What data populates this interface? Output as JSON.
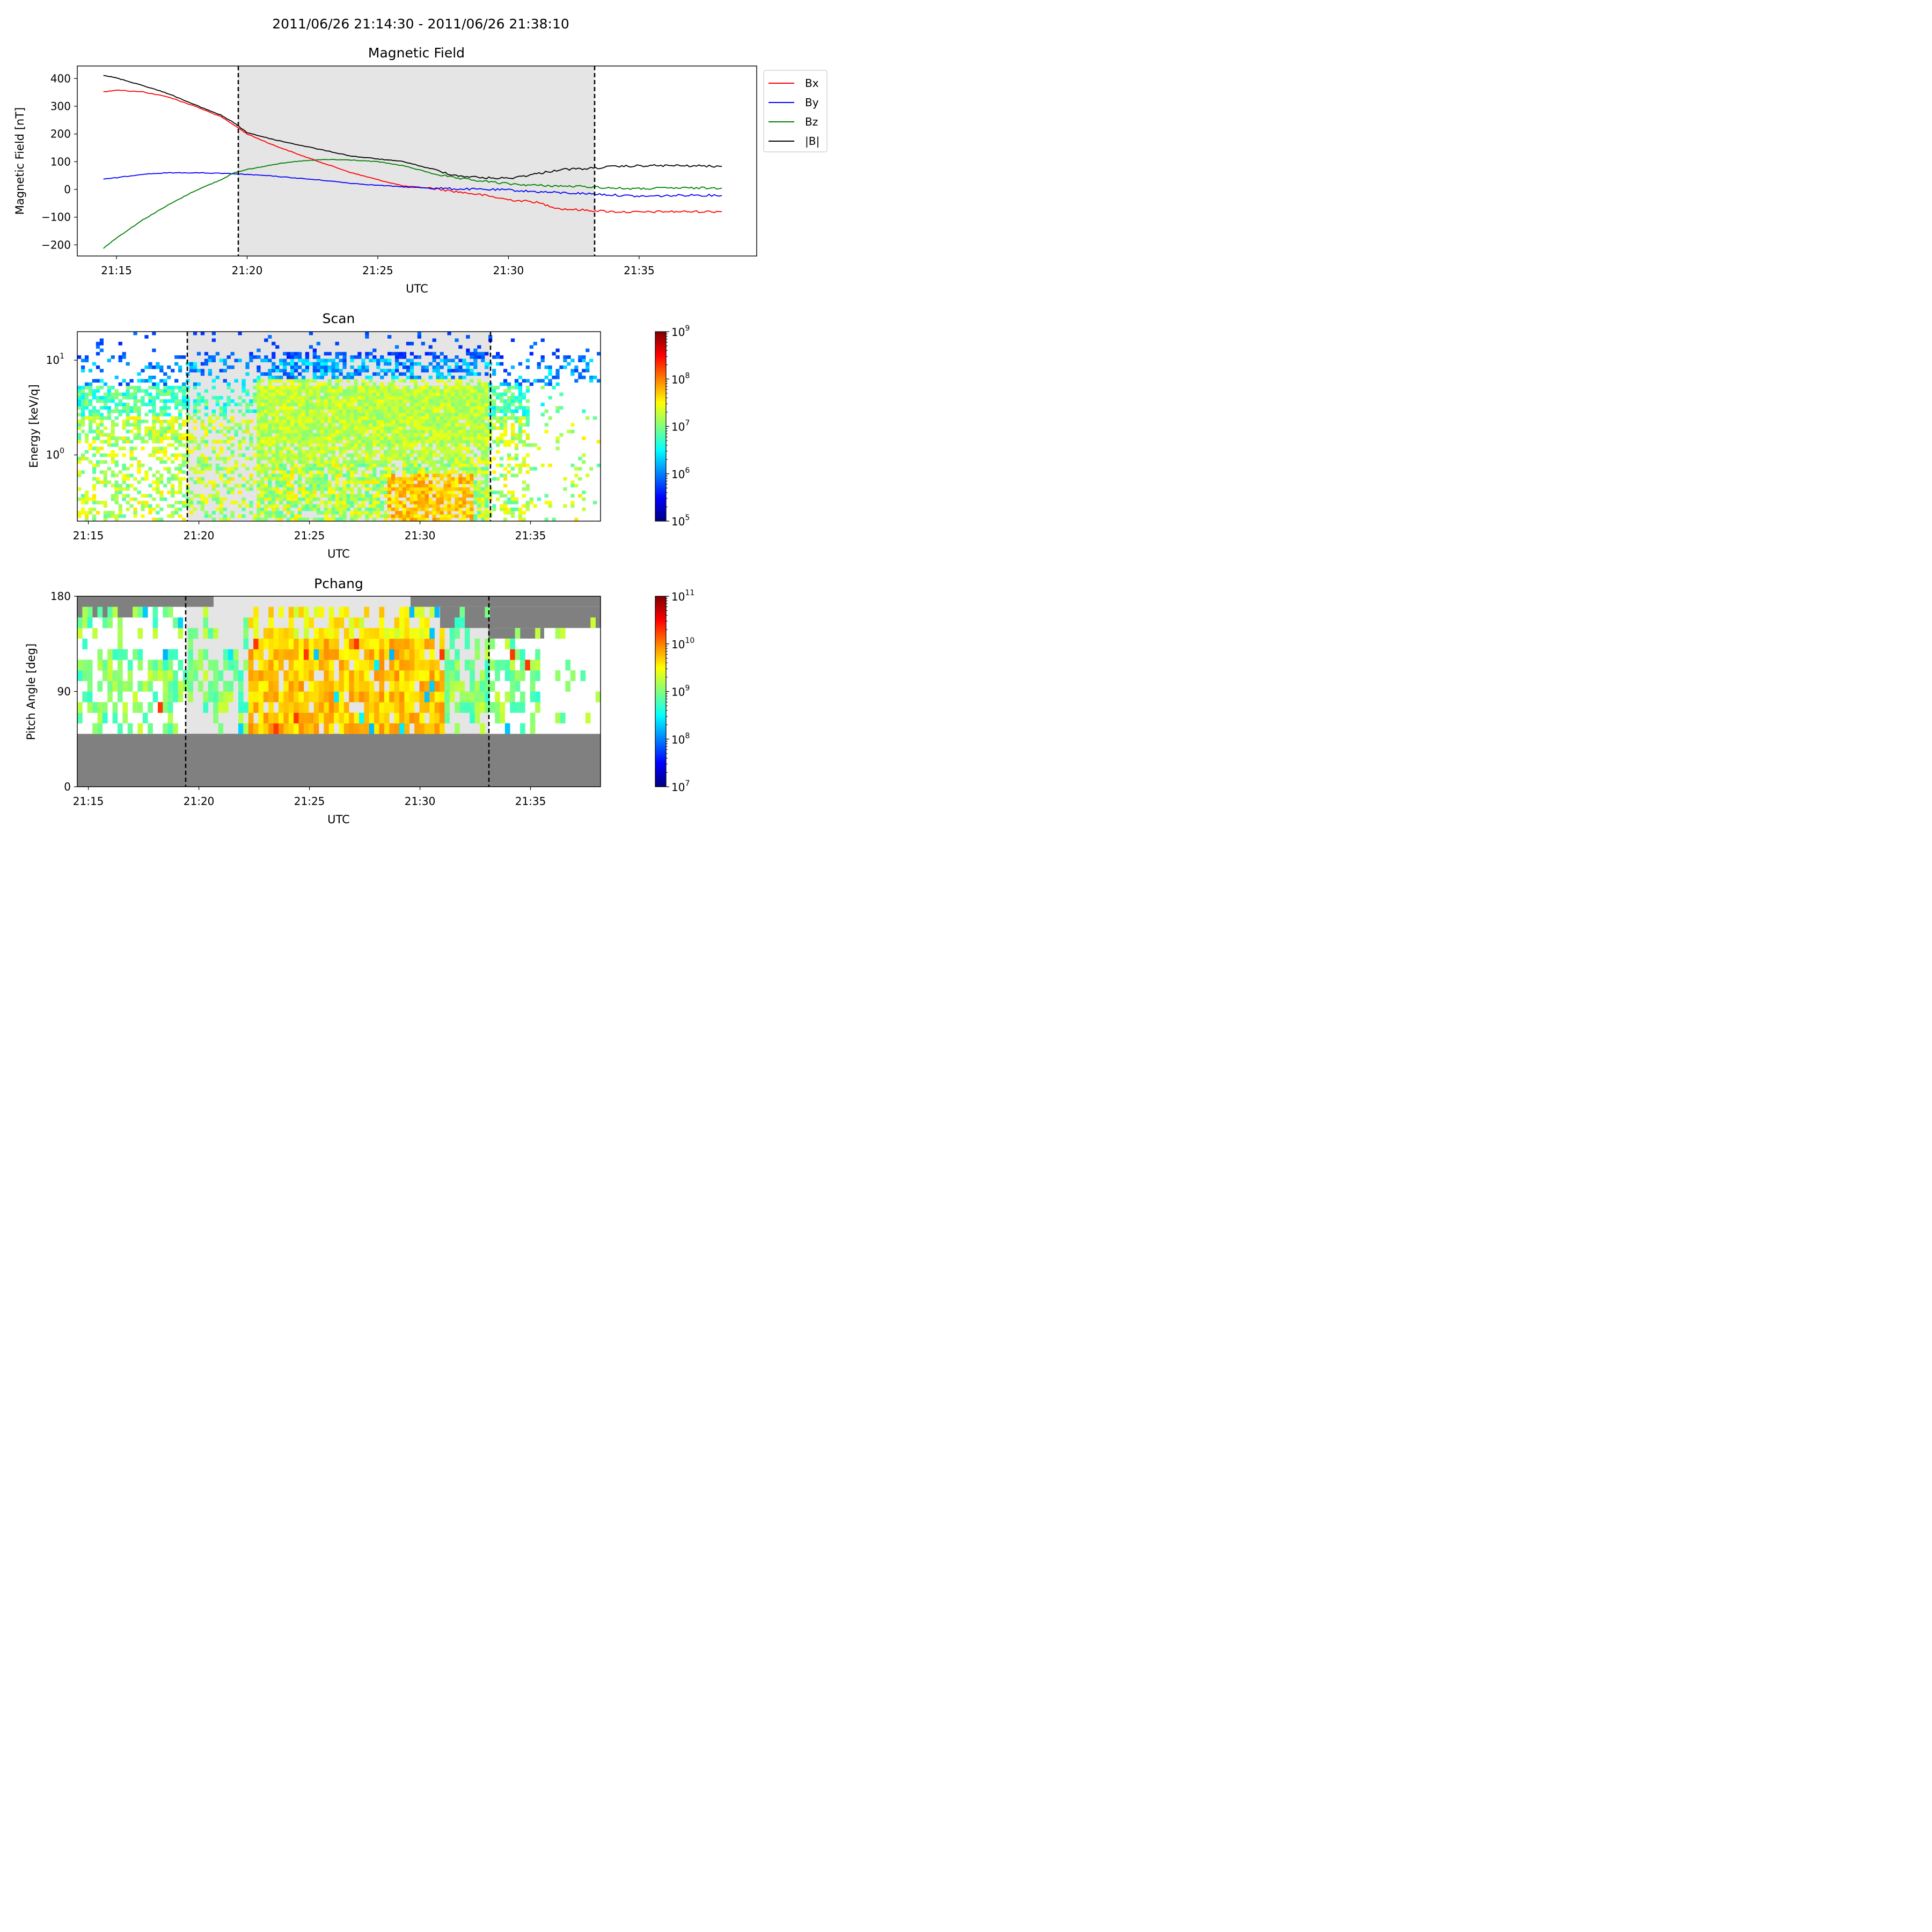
{
  "suptitle": "2011/06/26 21:14:30 - 2011/06/26 21:38:10",
  "colors": {
    "Bx": "#ff0000",
    "By": "#0000ff",
    "Bz": "#008000",
    "B": "#000000",
    "shade": "#e5e5e5",
    "gap": "#808080"
  },
  "chart_data": [
    {
      "type": "line",
      "title": "Magnetic Field",
      "xlabel": "UTC",
      "ylabel": "Magnetic Field [nT]",
      "xlim": [
        "21:13:30",
        "21:39:30"
      ],
      "ylim": [
        -240,
        445
      ],
      "x_ticks": [
        "21:15",
        "21:20",
        "21:25",
        "21:30",
        "21:35"
      ],
      "y_ticks": [
        400,
        300,
        200,
        100,
        0,
        -100,
        -200
      ],
      "y_tick_labels": [
        "400",
        "300",
        "200",
        "100",
        "0",
        "−100",
        "−200"
      ],
      "interval": {
        "start": "21:19:30",
        "end": "21:33:10",
        "style": "dashed lines, grey shading"
      },
      "legend": {
        "placement": "outside-right",
        "entries": [
          "Bx",
          "By",
          "Bz",
          "|B|"
        ]
      },
      "x": [
        "21:14:30",
        "21:15:00",
        "21:16:00",
        "21:17:00",
        "21:18:00",
        "21:19:00",
        "21:19:30",
        "21:20:00",
        "21:21:00",
        "21:22:00",
        "21:23:00",
        "21:24:00",
        "21:25:00",
        "21:26:00",
        "21:27:00",
        "21:28:00",
        "21:29:00",
        "21:30:00",
        "21:31:00",
        "21:32:00",
        "21:33:00",
        "21:34:00",
        "21:35:00",
        "21:36:00",
        "21:37:00",
        "21:38:10"
      ],
      "series": [
        {
          "name": "Bx",
          "values": [
            352,
            358,
            352,
            333,
            300,
            262,
            232,
            200,
            160,
            125,
            92,
            60,
            35,
            12,
            5,
            -8,
            -20,
            -37,
            -45,
            -70,
            -75,
            -80,
            -82,
            -80,
            -80,
            -80
          ]
        },
        {
          "name": "By",
          "values": [
            38,
            42,
            55,
            60,
            60,
            58,
            56,
            54,
            48,
            40,
            32,
            22,
            15,
            9,
            5,
            2,
            0,
            -2,
            -8,
            -12,
            -15,
            -20,
            -25,
            -23,
            -20,
            -22
          ]
        },
        {
          "name": "Bz",
          "values": [
            -212,
            -175,
            -110,
            -55,
            -5,
            35,
            60,
            72,
            90,
            102,
            108,
            106,
            100,
            85,
            60,
            40,
            30,
            20,
            15,
            12,
            10,
            5,
            2,
            5,
            5,
            5
          ]
        },
        {
          "name": "|B|",
          "values": [
            412,
            402,
            375,
            345,
            305,
            268,
            240,
            205,
            180,
            160,
            140,
            120,
            110,
            100,
            75,
            50,
            42,
            40,
            55,
            72,
            75,
            82,
            85,
            86,
            85,
            83
          ]
        }
      ]
    },
    {
      "type": "heatmap",
      "title": "Scan",
      "xlabel": "UTC",
      "ylabel": "Energy [keV/q]",
      "xlim": [
        "21:14:30",
        "21:38:10"
      ],
      "ylim": [
        0.2,
        20
      ],
      "y_scale": "log",
      "x_ticks": [
        "21:15",
        "21:20",
        "21:25",
        "21:30",
        "21:35"
      ],
      "y_ticks": [
        {
          "base": "10",
          "exp": "1",
          "value": 10
        },
        {
          "base": "10",
          "exp": "0",
          "value": 1
        }
      ],
      "interval": {
        "start": "21:19:30",
        "end": "21:33:10"
      },
      "colorscale": "jet",
      "colorbar": {
        "scale": "log",
        "range": [
          100000,
          1000000000
        ],
        "ticks": [
          {
            "base": "10",
            "exp": "9"
          },
          {
            "base": "10",
            "exp": "8"
          },
          {
            "base": "10",
            "exp": "7"
          },
          {
            "base": "10",
            "exp": "6"
          },
          {
            "base": "10",
            "exp": "5"
          }
        ]
      }
    },
    {
      "type": "heatmap",
      "title": "Pchang",
      "xlabel": "UTC",
      "ylabel": "Pitch Angle [deg]",
      "xlim": [
        "21:14:30",
        "21:38:10"
      ],
      "ylim": [
        0,
        180
      ],
      "x_ticks": [
        "21:15",
        "21:20",
        "21:25",
        "21:30",
        "21:35"
      ],
      "y_ticks": [
        180,
        90,
        0
      ],
      "interval": {
        "start": "21:19:30",
        "end": "21:33:10"
      },
      "colorscale": "jet",
      "colorbar": {
        "scale": "log",
        "range": [
          10000000,
          100000000000
        ],
        "ticks": [
          {
            "base": "10",
            "exp": "11"
          },
          {
            "base": "10",
            "exp": "10"
          },
          {
            "base": "10",
            "exp": "9"
          },
          {
            "base": "10",
            "exp": "8"
          },
          {
            "base": "10",
            "exp": "7"
          }
        ]
      }
    }
  ]
}
